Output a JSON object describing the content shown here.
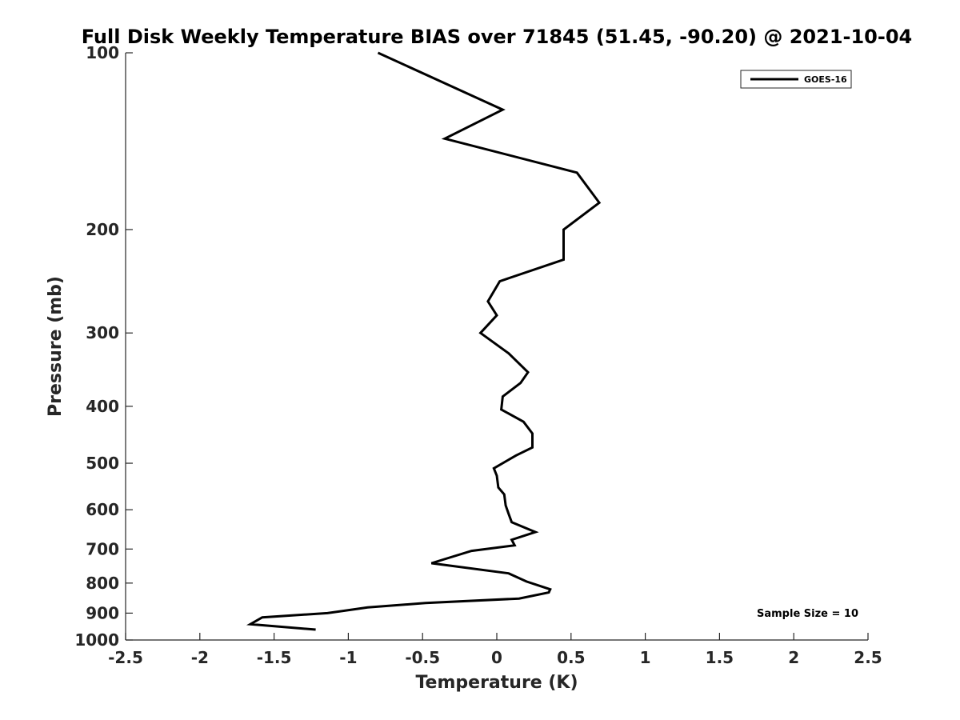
{
  "chart_data": {
    "type": "line",
    "title": "Full Disk Weekly Temperature BIAS over 71845 (51.45, -90.20) @ 2021-10-04",
    "xlabel": "Temperature (K)",
    "ylabel": "Pressure (mb)",
    "xlim": [
      -2.5,
      2.5
    ],
    "ylim": [
      100,
      1000
    ],
    "y_scale": "log",
    "y_reversed": true,
    "x_ticks": [
      "-2.5",
      "-2",
      "-1.5",
      "-1",
      "-0.5",
      "0",
      "0.5",
      "1",
      "1.5",
      "2",
      "2.5"
    ],
    "x_tick_values": [
      -2.5,
      -2,
      -1.5,
      -1,
      -0.5,
      0,
      0.5,
      1,
      1.5,
      2,
      2.5
    ],
    "y_ticks": [
      "100",
      "200",
      "300",
      "400",
      "500",
      "600",
      "700",
      "800",
      "900",
      "1000"
    ],
    "y_tick_values": [
      100,
      200,
      300,
      400,
      500,
      600,
      700,
      800,
      900,
      1000
    ],
    "grid": false,
    "legend_position": "top-right",
    "annotation": "Sample Size = 10",
    "series": [
      {
        "name": "GOES-16",
        "color": "#000000",
        "x": [
          -0.8,
          0.04,
          -0.35,
          0.54,
          0.69,
          0.45,
          0.45,
          0.02,
          -0.06,
          0.0,
          -0.11,
          0.08,
          0.21,
          0.16,
          0.04,
          0.03,
          0.18,
          0.24,
          0.24,
          0.13,
          -0.02,
          0.0,
          0.01,
          0.05,
          0.06,
          0.08,
          0.1,
          0.26,
          0.1,
          0.12,
          -0.17,
          -0.44,
          0.08,
          0.2,
          0.36,
          0.35,
          0.15,
          -0.48,
          -0.87,
          -1.14,
          -1.58,
          -1.66,
          -1.22
        ],
        "y": [
          100,
          125,
          140,
          160,
          180,
          200,
          225,
          245,
          265,
          280,
          300,
          325,
          350,
          365,
          385,
          405,
          425,
          445,
          470,
          485,
          510,
          525,
          550,
          565,
          590,
          610,
          630,
          655,
          675,
          690,
          705,
          740,
          770,
          795,
          820,
          830,
          850,
          865,
          880,
          900,
          915,
          940,
          960
        ]
      }
    ]
  }
}
